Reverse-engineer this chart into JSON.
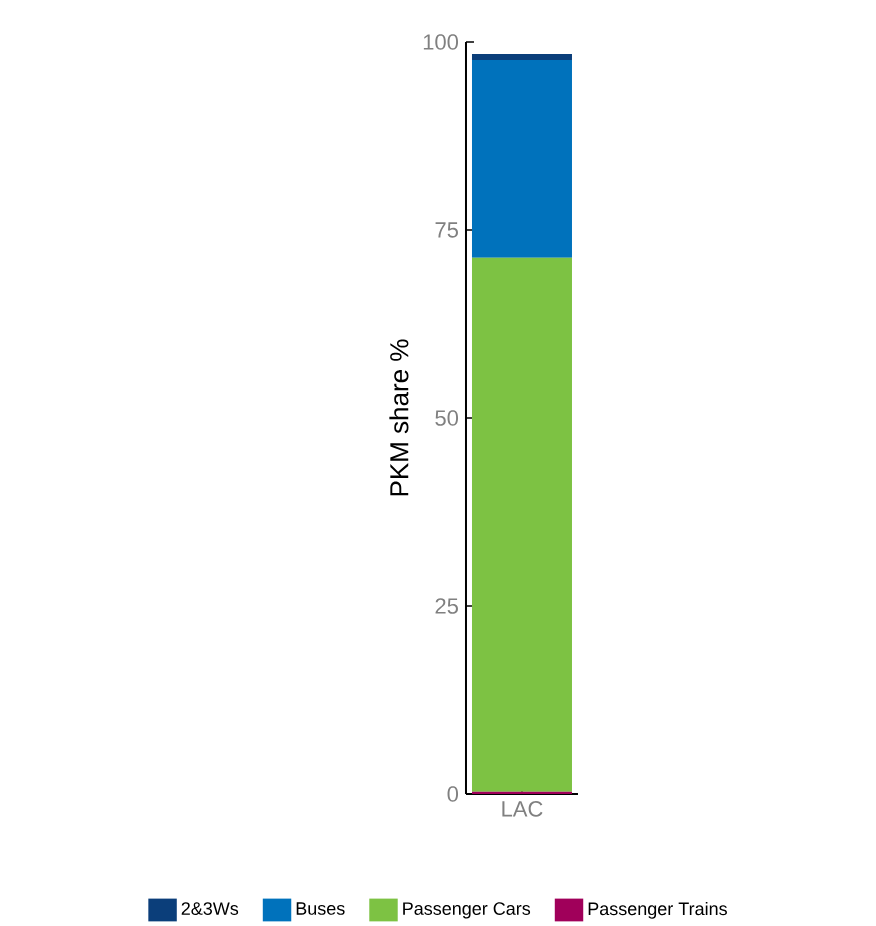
{
  "chart_data": {
    "type": "bar",
    "stacked": true,
    "ylabel": "PKM share %",
    "categories": [
      "LAC"
    ],
    "series": [
      {
        "name": "Passenger Trains",
        "color": "#a0005a",
        "values": [
          0.3
        ]
      },
      {
        "name": "Passenger Cars",
        "color": "#7dc243",
        "values": [
          71.0
        ]
      },
      {
        "name": "Buses",
        "color": "#0072bc",
        "values": [
          26.3
        ]
      },
      {
        "name": "2&3Ws",
        "color": "#0b3e7a",
        "values": [
          0.8
        ]
      }
    ],
    "ylim": [
      0,
      100
    ],
    "yticks": [
      0,
      25,
      50,
      75,
      100
    ],
    "grid": false,
    "legend": "bottom"
  }
}
